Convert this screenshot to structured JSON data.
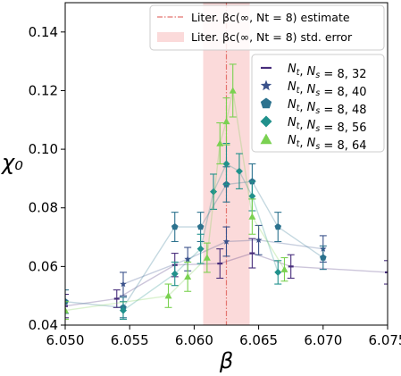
{
  "chart_data": {
    "type": "scatter",
    "xlabel": "β",
    "ylabel": "χ₀",
    "xlim": [
      6.05,
      6.075
    ],
    "ylim": [
      0.04,
      0.15
    ],
    "xticks": [
      6.05,
      6.055,
      6.06,
      6.065,
      6.07,
      6.075
    ],
    "xtick_labels": [
      "6.050",
      "6.055",
      "6.060",
      "6.065",
      "6.070",
      "6.075"
    ],
    "yticks": [
      0.04,
      0.06,
      0.08,
      0.1,
      0.12,
      0.14
    ],
    "ytick_labels": [
      "0.04",
      "0.06",
      "0.08",
      "0.10",
      "0.12",
      "0.14"
    ],
    "grid": false,
    "reference": {
      "estimate_x": 6.0625,
      "error_band": [
        6.0607,
        6.0643
      ],
      "estimate_label": "Liter. βc(∞, Nt = 8) estimate",
      "error_label": "Liter. βc(∞, Nt = 8) std. error",
      "line_color": "#e4746f",
      "band_color": "#fbdada"
    },
    "legend_placement": "right",
    "series": [
      {
        "name": "Nt, Ns = 8, 32",
        "marker": "hline",
        "color": "#472d7b",
        "x": [
          6.05,
          6.054,
          6.0585,
          6.062,
          6.0645,
          6.0675,
          6.075
        ],
        "y": [
          0.0465,
          0.049,
          0.0605,
          0.061,
          0.0645,
          0.06,
          0.058
        ],
        "err": [
          0.004,
          0.003,
          0.004,
          0.005,
          0.005,
          0.004,
          0.004
        ]
      },
      {
        "name": "Nt, Ns = 8, 40",
        "marker": "star",
        "color": "#3b528b",
        "x": [
          6.0545,
          6.0595,
          6.0625,
          6.065,
          6.07
        ],
        "y": [
          0.054,
          0.0625,
          0.0685,
          0.069,
          0.066
        ],
        "err": [
          0.004,
          0.004,
          0.005,
          0.005,
          0.0045
        ]
      },
      {
        "name": "Nt, Ns = 8, 48",
        "marker": "pentagon",
        "color": "#2c728e",
        "x": [
          6.05,
          6.0545,
          6.0585,
          6.0605,
          6.0625,
          6.0645,
          6.0665,
          6.07
        ],
        "y": [
          0.048,
          0.046,
          0.0735,
          0.0735,
          0.088,
          0.089,
          0.0735,
          0.063
        ],
        "err": [
          0.004,
          0.0035,
          0.005,
          0.005,
          0.006,
          0.006,
          0.005,
          0.004
        ]
      },
      {
        "name": "Nt, Ns = 8, 56",
        "marker": "diamond",
        "color": "#21918c",
        "x": [
          6.0545,
          6.0585,
          6.0605,
          6.0615,
          6.0625,
          6.0635,
          6.0645,
          6.0665
        ],
        "y": [
          0.045,
          0.0575,
          0.066,
          0.0855,
          0.095,
          0.0925,
          0.084,
          0.058
        ],
        "err": [
          0.003,
          0.004,
          0.005,
          0.006,
          0.007,
          0.006,
          0.005,
          0.004
        ]
      },
      {
        "name": "Nt, Ns = 8, 64",
        "marker": "triangle",
        "color": "#7ad151",
        "x": [
          6.05,
          6.058,
          6.0595,
          6.061,
          6.062,
          6.0625,
          6.063,
          6.0645,
          6.067
        ],
        "y": [
          0.045,
          0.05,
          0.0565,
          0.063,
          0.102,
          0.1095,
          0.12,
          0.077,
          0.059
        ],
        "err": [
          0.003,
          0.004,
          0.005,
          0.005,
          0.007,
          0.008,
          0.009,
          0.006,
          0.004
        ]
      }
    ]
  }
}
